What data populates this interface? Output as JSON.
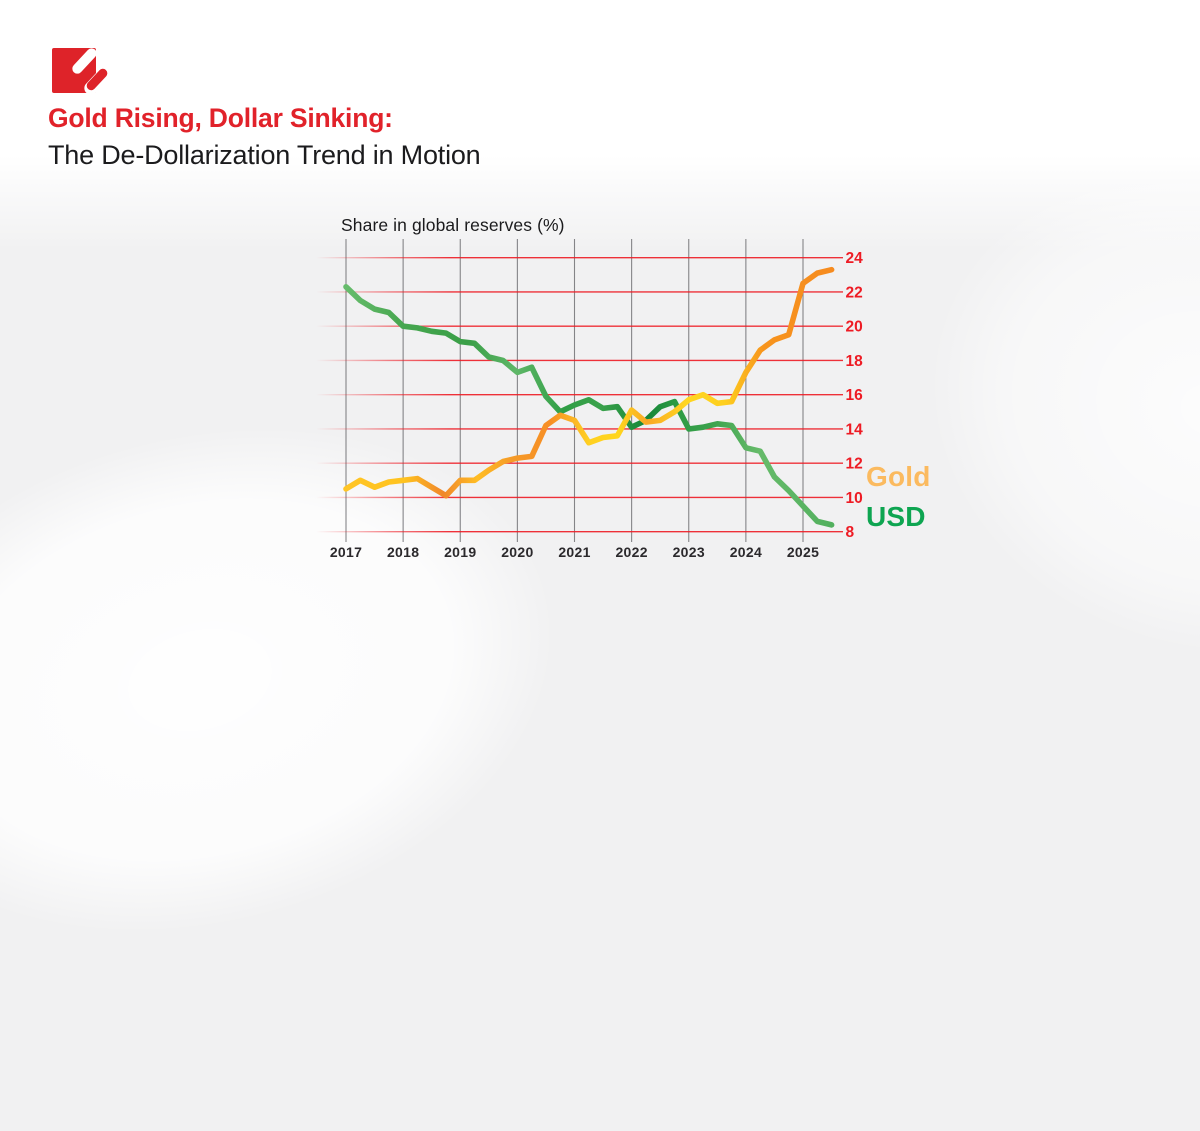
{
  "page": {
    "title_red": "Gold Rising, Dollar Sinking:",
    "title_dark": "The De-Dollarization Trend in Motion"
  },
  "colors": {
    "brand_red": "#de2329",
    "headline_red": "#e1222a",
    "text_dark": "#1b1b1d",
    "axis_red": "#ee1b24",
    "x_label_dark": "#2b292c",
    "grid_vertical": "#69696d",
    "gold_legend": "#fbba5f",
    "usd_legend": "#0ea551",
    "gold_line": "#f7941d",
    "gold_line_alt": "#ffd21e",
    "usd_line": "#2f9e45",
    "usd_line_alt": "#66bb6a"
  },
  "chart_data": {
    "type": "line",
    "title": "Share in global reserves (%)",
    "xlabel": "",
    "ylabel": "Share in global reserves (%)",
    "x_start": 2017,
    "x_step": 0.25,
    "xticks": [
      "2017",
      "2018",
      "2019",
      "2020",
      "2021",
      "2022",
      "2023",
      "2024",
      "2025"
    ],
    "yticks": [
      8,
      10,
      12,
      14,
      16,
      18,
      20,
      22,
      24
    ],
    "ylim": [
      8,
      24
    ],
    "grid": "on",
    "legend_position": "right",
    "series": [
      {
        "name": "Gold",
        "values": [
          10.5,
          11.0,
          10.6,
          10.9,
          11.0,
          11.1,
          10.6,
          10.1,
          11.0,
          11.0,
          11.6,
          12.1,
          12.3,
          12.4,
          14.2,
          14.8,
          14.5,
          13.2,
          13.5,
          13.6,
          15.1,
          14.4,
          14.5,
          15.0,
          15.7,
          16.0,
          15.5,
          15.6,
          17.3,
          18.6,
          19.2,
          19.5,
          22.5,
          23.1,
          23.3
        ]
      },
      {
        "name": "USD",
        "values": [
          22.3,
          21.5,
          21.0,
          20.8,
          20.0,
          19.9,
          19.7,
          19.6,
          19.1,
          19.0,
          18.2,
          18.0,
          17.3,
          17.6,
          15.9,
          15.0,
          15.4,
          15.7,
          15.2,
          15.3,
          14.1,
          14.5,
          15.3,
          15.6,
          14.0,
          14.1,
          14.3,
          14.2,
          12.9,
          12.7,
          11.2,
          10.4,
          9.5,
          8.6,
          8.4
        ]
      }
    ]
  }
}
